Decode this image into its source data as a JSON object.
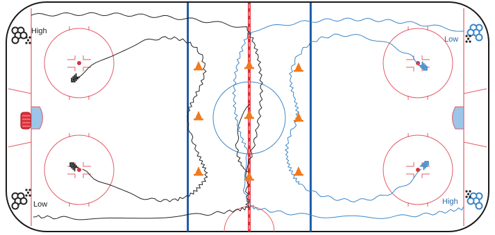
{
  "labels": {
    "top_left": "High",
    "bottom_left": "Low",
    "top_right": "Low",
    "bottom_right": "High"
  },
  "colors": {
    "rink_outline": "#1a1a1a",
    "red_line": "#e0303a",
    "blue_line": "#1f5fa8",
    "faceoff_circle": "#e35a65",
    "team_black": "#222222",
    "team_blue": "#3a86c8",
    "cone": "#f07a1e",
    "goal_fill": "#9cc5ea"
  },
  "icons": {
    "player_group": "stacked-circles-icon",
    "puck_pile": "puck-dots-icon",
    "cone": "cone-icon",
    "skater_arrow": "skater-arrow-icon"
  }
}
